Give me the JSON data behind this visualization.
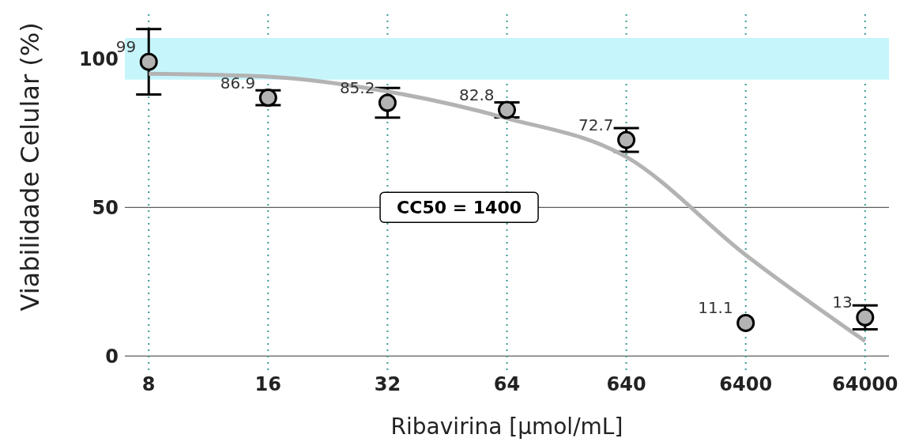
{
  "chart_data": {
    "type": "scatter",
    "xlabel": "Ribavirina [µmol/mL]",
    "ylabel": "Viabilidade Celular (%)",
    "categories": [
      "8",
      "16",
      "32",
      "64",
      "640",
      "6400",
      "64000"
    ],
    "series": [
      {
        "color": "#b3b3b3",
        "marker": "circle",
        "values": [
          99,
          86.9,
          85.2,
          82.8,
          72.7,
          11.1,
          13
        ],
        "errors": [
          11,
          2.5,
          5,
          2.5,
          4,
          null,
          4
        ],
        "value_labels": [
          "99",
          "86.9",
          "85.2",
          "82.8",
          "72.7",
          "11.1",
          "13"
        ]
      },
      {
        "type": "line",
        "color": "#b3b3b3",
        "values": [
          95,
          94,
          89,
          80,
          67,
          34,
          5
        ]
      }
    ],
    "ylim": [
      -5,
      115
    ],
    "yticks": [
      0,
      50,
      100
    ],
    "grid": true,
    "bands": [
      {
        "axis": "y",
        "from": 93,
        "to": 107,
        "color": "#c6f6fc"
      }
    ],
    "annotations": [
      "CC50 = 1400"
    ]
  }
}
